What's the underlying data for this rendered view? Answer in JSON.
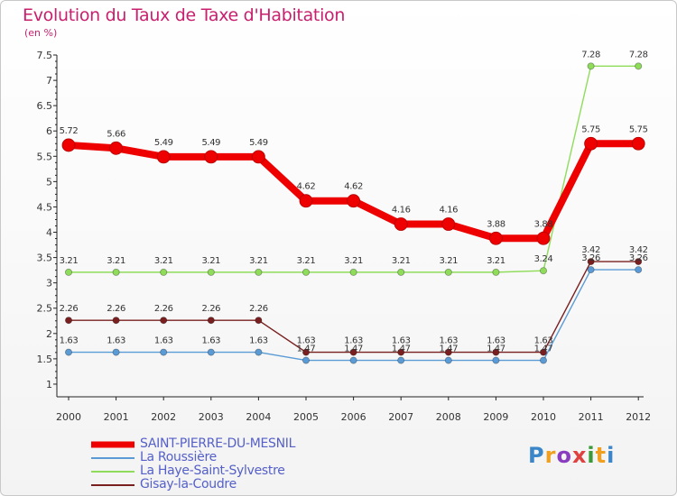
{
  "title": "Evolution du Taux de Taxe d'Habitation",
  "unit": "(en %)",
  "logo_text": "Proxiti",
  "chart_data": {
    "type": "line",
    "title": "Evolution du Taux de Taxe d'Habitation",
    "ylabel": "(en %)",
    "xlabel": "",
    "x": [
      "2000",
      "2001",
      "2002",
      "2003",
      "2004",
      "2005",
      "2006",
      "2007",
      "2008",
      "2009",
      "2010",
      "2011",
      "2012"
    ],
    "ylim": [
      0.75,
      7.5
    ],
    "y_ticks": [
      "1",
      "1.5",
      "2",
      "2.5",
      "3",
      "3.5",
      "4",
      "4.5",
      "5",
      "5.5",
      "6",
      "6.5",
      "7",
      "7.5"
    ],
    "grid": false,
    "legend": "bottom-left",
    "series": [
      {
        "name": "SAINT-PIERRE-DU-MESNIL",
        "color": "#ee0000",
        "values": [
          5.72,
          5.66,
          5.49,
          5.49,
          5.49,
          4.62,
          4.62,
          4.16,
          4.16,
          3.88,
          3.88,
          5.75,
          5.75
        ],
        "labels": [
          "5.72",
          "5.66",
          "5.49",
          "5.49",
          "5.49",
          "4.62",
          "4.62",
          "4.16",
          "4.16",
          "3.88",
          "3.88",
          "5.75",
          "5.75"
        ]
      },
      {
        "name": "La Roussière",
        "color": "#5b9bd5",
        "values": [
          1.63,
          1.63,
          1.63,
          1.63,
          1.63,
          1.47,
          1.47,
          1.47,
          1.47,
          1.47,
          1.47,
          3.26,
          3.26
        ],
        "labels": [
          "1.63",
          "1.63",
          "1.63",
          "1.63",
          "1.63",
          "1.47",
          "1.47",
          "1.47",
          "1.47",
          "1.47",
          "1.47",
          "3.26",
          "3.26"
        ]
      },
      {
        "name": "La Haye-Saint-Sylvestre",
        "color": "#8fdc5a",
        "values": [
          3.21,
          3.21,
          3.21,
          3.21,
          3.21,
          3.21,
          3.21,
          3.21,
          3.21,
          3.21,
          3.24,
          7.28,
          7.28
        ],
        "labels": [
          "3.21",
          "3.21",
          "3.21",
          "3.21",
          "3.21",
          "3.21",
          "3.21",
          "3.21",
          "3.21",
          "3.21",
          "3.24",
          "7.28",
          "7.28"
        ]
      },
      {
        "name": "Gisay-la-Coudre",
        "color": "#7a1f1f",
        "values": [
          2.26,
          2.26,
          2.26,
          2.26,
          2.26,
          1.63,
          1.63,
          1.63,
          1.63,
          1.63,
          1.63,
          3.42,
          3.42
        ],
        "labels": [
          "2.26",
          "2.26",
          "2.26",
          "2.26",
          "2.26",
          "1.63",
          "1.63",
          "1.63",
          "1.63",
          "1.63",
          "1.63",
          "3.42",
          "3.42"
        ]
      }
    ]
  }
}
